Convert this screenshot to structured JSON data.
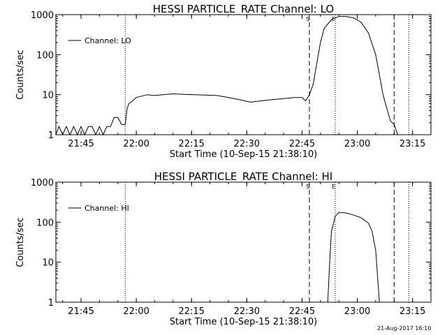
{
  "footer_stamp": "21-Aug-2017 16:10",
  "chart_data": [
    {
      "type": "line",
      "title": "HESSI PARTICLE_RATE Channel: LO",
      "xlabel": "Start Time (10-Sep-15 21:38:10)",
      "ylabel": "Counts/sec",
      "yscale": "log",
      "xlim": [
        "21:38:10",
        "23:20:00"
      ],
      "ylim": [
        1,
        1000
      ],
      "x_ticks": [
        "21:45",
        "22:00",
        "22:15",
        "22:30",
        "22:45",
        "23:00",
        "23:15"
      ],
      "y_ticks": [
        "1",
        "10",
        "100",
        "1000"
      ],
      "legend": {
        "label": "Channel: LO",
        "position": "top-left"
      },
      "markers": [
        {
          "time": "21:57:00",
          "label": "",
          "style": "dotted"
        },
        {
          "time": "22:47:00",
          "label": "S",
          "style": "dashed"
        },
        {
          "time": "22:54:00",
          "label": "E",
          "style": "dotted"
        },
        {
          "time": "23:10:00",
          "label": "",
          "style": "dashed"
        },
        {
          "time": "23:14:00",
          "label": "",
          "style": "dotted"
        }
      ],
      "series": [
        {
          "name": "Channel: LO",
          "points": [
            [
              "21:38:10",
              1
            ],
            [
              "21:39:00",
              1.6
            ],
            [
              "21:40:00",
              1
            ],
            [
              "21:41:00",
              1.6
            ],
            [
              "21:42:00",
              1
            ],
            [
              "21:43:00",
              1.6
            ],
            [
              "21:44:00",
              1
            ],
            [
              "21:45:00",
              1.6
            ],
            [
              "21:46:00",
              1
            ],
            [
              "21:47:00",
              1.6
            ],
            [
              "21:48:00",
              1.6
            ],
            [
              "21:49:00",
              1
            ],
            [
              "21:50:00",
              1.6
            ],
            [
              "21:51:00",
              1
            ],
            [
              "21:52:00",
              1.6
            ],
            [
              "21:53:00",
              1.6
            ],
            [
              "21:54:00",
              2.7
            ],
            [
              "21:55:00",
              2.7
            ],
            [
              "21:56:00",
              1.8
            ],
            [
              "21:57:00",
              1.8
            ],
            [
              "21:57:30",
              4.5
            ],
            [
              "21:58:00",
              6.0
            ],
            [
              "21:59:00",
              7.0
            ],
            [
              "22:00:00",
              8.5
            ],
            [
              "22:01:00",
              9.0
            ],
            [
              "22:03:00",
              10.0
            ],
            [
              "22:05:00",
              9.5
            ],
            [
              "22:07:00",
              10.0
            ],
            [
              "22:10:00",
              10.5
            ],
            [
              "22:13:00",
              10.2
            ],
            [
              "22:16:00",
              10.0
            ],
            [
              "22:19:00",
              9.8
            ],
            [
              "22:22:00",
              9.5
            ],
            [
              "22:25:00",
              8.5
            ],
            [
              "22:28:00",
              7.5
            ],
            [
              "22:31:00",
              6.5
            ],
            [
              "22:34:00",
              7.0
            ],
            [
              "22:37:00",
              7.5
            ],
            [
              "22:40:00",
              8.0
            ],
            [
              "22:43:00",
              8.5
            ],
            [
              "22:45:00",
              8.5
            ],
            [
              "22:46:00",
              7.0
            ],
            [
              "22:47:00",
              10
            ],
            [
              "22:48:00",
              18
            ],
            [
              "22:49:00",
              60
            ],
            [
              "22:50:00",
              200
            ],
            [
              "22:51:00",
              450
            ],
            [
              "22:53:00",
              750
            ],
            [
              "22:55:00",
              900
            ],
            [
              "22:57:00",
              900
            ],
            [
              "22:59:00",
              830
            ],
            [
              "23:01:00",
              650
            ],
            [
              "23:03:00",
              350
            ],
            [
              "23:05:00",
              100
            ],
            [
              "23:07:00",
              10
            ],
            [
              "23:09:00",
              2.2
            ],
            [
              "23:10:00",
              1.8
            ],
            [
              "23:11:00",
              1
            ],
            [
              "23:14:00",
              1
            ]
          ]
        }
      ]
    },
    {
      "type": "line",
      "title": "HESSI PARTICLE_RATE Channel: HI",
      "xlabel": "Start Time (10-Sep-15 21:38:10)",
      "ylabel": "Counts/sec",
      "yscale": "log",
      "xlim": [
        "21:38:10",
        "23:20:00"
      ],
      "ylim": [
        1,
        1000
      ],
      "x_ticks": [
        "21:45",
        "22:00",
        "22:15",
        "22:30",
        "22:45",
        "23:00",
        "23:15"
      ],
      "y_ticks": [
        "1",
        "10",
        "100",
        "1000"
      ],
      "legend": {
        "label": "Channel: HI",
        "position": "top-left"
      },
      "markers": [
        {
          "time": "21:57:00",
          "label": "",
          "style": "dotted"
        },
        {
          "time": "22:47:00",
          "label": "S",
          "style": "dashed"
        },
        {
          "time": "22:54:00",
          "label": "E",
          "style": "dotted"
        },
        {
          "time": "23:10:00",
          "label": "",
          "style": "dashed"
        },
        {
          "time": "23:14:00",
          "label": "",
          "style": "dotted"
        }
      ],
      "series": [
        {
          "name": "Channel: HI",
          "points": [
            [
              "22:52:00",
              1
            ],
            [
              "22:52:30",
              10
            ],
            [
              "22:53:00",
              60
            ],
            [
              "22:54:00",
              140
            ],
            [
              "22:55:00",
              175
            ],
            [
              "22:57:00",
              170
            ],
            [
              "22:59:00",
              150
            ],
            [
              "23:01:00",
              130
            ],
            [
              "23:03:00",
              95
            ],
            [
              "23:04:00",
              60
            ],
            [
              "23:05:00",
              20
            ],
            [
              "23:06:00",
              1
            ]
          ]
        }
      ]
    }
  ]
}
